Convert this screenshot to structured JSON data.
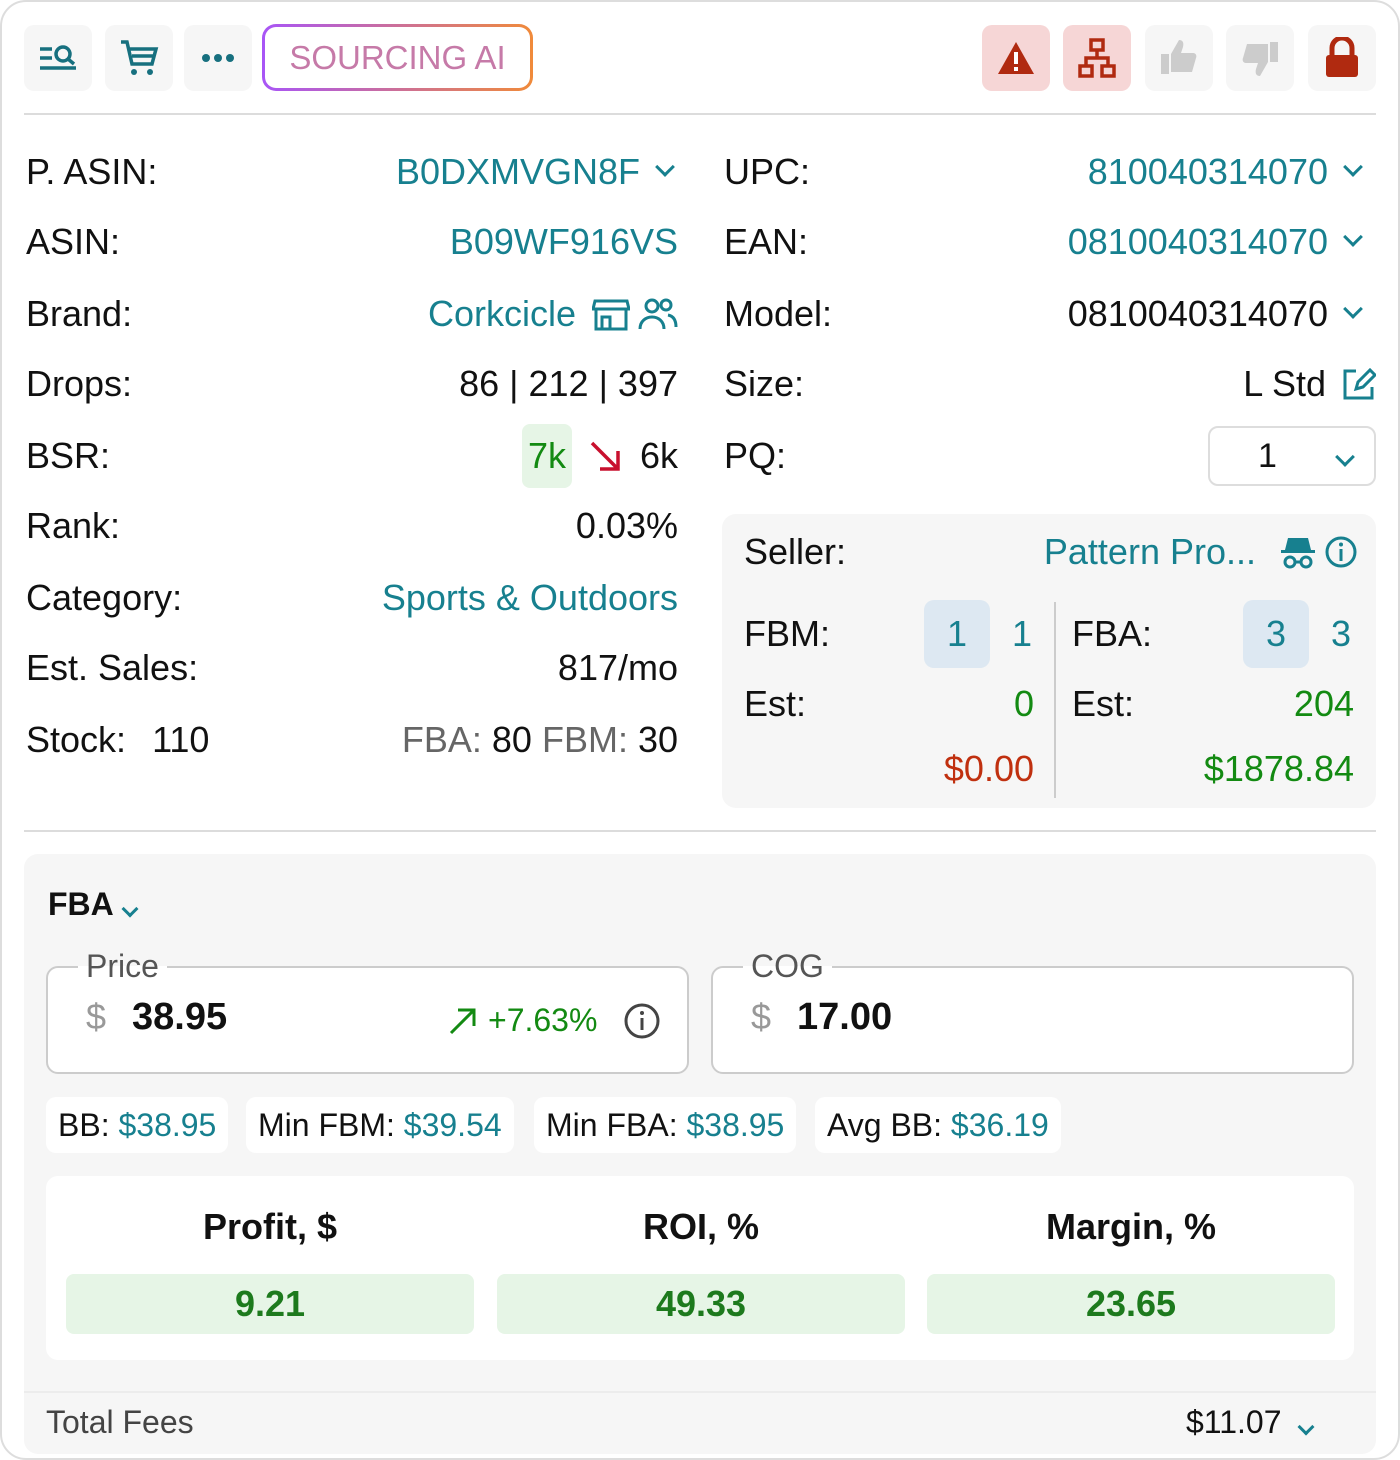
{
  "toolbar": {
    "sourcing_ai": "SOURCING AI",
    "icons": [
      "search-list-icon",
      "cart-icon",
      "more-icon",
      "warning-icon",
      "hierarchy-icon",
      "thumbs-up-icon",
      "thumbs-down-icon",
      "lock-icon"
    ]
  },
  "left": {
    "p_asin": {
      "label": "P. ASIN:",
      "value": "B0DXMVGN8F"
    },
    "asin": {
      "label": "ASIN:",
      "value": "B09WF916VS"
    },
    "brand": {
      "label": "Brand:",
      "value": "Corkcicle"
    },
    "drops": {
      "label": "Drops:",
      "value": "86 | 212 | 397"
    },
    "bsr": {
      "label": "BSR:",
      "current": "7k",
      "previous": "6k"
    },
    "rank": {
      "label": "Rank:",
      "value": "0.03%"
    },
    "category": {
      "label": "Category:",
      "value": "Sports & Outdoors"
    },
    "est_sales": {
      "label": "Est. Sales:",
      "value": "817/mo"
    },
    "stock": {
      "label": "Stock:",
      "value": "110",
      "fba_label": "FBA:",
      "fba": "80",
      "fbm_label": "FBM:",
      "fbm": "30"
    }
  },
  "right": {
    "upc": {
      "label": "UPC:",
      "value": "810040314070"
    },
    "ean": {
      "label": "EAN:",
      "value": "0810040314070"
    },
    "model": {
      "label": "Model:",
      "value": "0810040314070"
    },
    "size": {
      "label": "Size:",
      "value": "L Std"
    },
    "pq": {
      "label": "PQ:",
      "value": "1"
    }
  },
  "seller": {
    "label": "Seller:",
    "value": "Pattern Pro...",
    "fbm_label": "FBM:",
    "fbm_a": "1",
    "fbm_b": "1",
    "fba_label": "FBA:",
    "fba_a": "3",
    "fba_b": "3",
    "est_label": "Est:",
    "fbm_est": "0",
    "fba_est": "204",
    "fbm_rev": "$0.00",
    "fba_rev": "$1878.84"
  },
  "fba": {
    "title": "FBA",
    "price": {
      "legend": "Price",
      "currency": "$",
      "value": "38.95",
      "change": "+7.63%"
    },
    "cog": {
      "legend": "COG",
      "currency": "$",
      "value": "17.00"
    },
    "chips": [
      {
        "label": "BB:",
        "value": "$38.95"
      },
      {
        "label": "Min FBM:",
        "value": "$39.54"
      },
      {
        "label": "Min FBA:",
        "value": "$38.95"
      },
      {
        "label": "Avg BB:",
        "value": "$36.19"
      }
    ],
    "metrics": [
      {
        "label": "Profit, $",
        "value": "9.21"
      },
      {
        "label": "ROI, %",
        "value": "49.33"
      },
      {
        "label": "Margin, %",
        "value": "23.65"
      }
    ],
    "total_fees": {
      "label": "Total Fees",
      "value": "$11.07"
    }
  },
  "colors": {
    "link": "#17808f",
    "positive": "#138a12",
    "negative": "#c0300f"
  }
}
